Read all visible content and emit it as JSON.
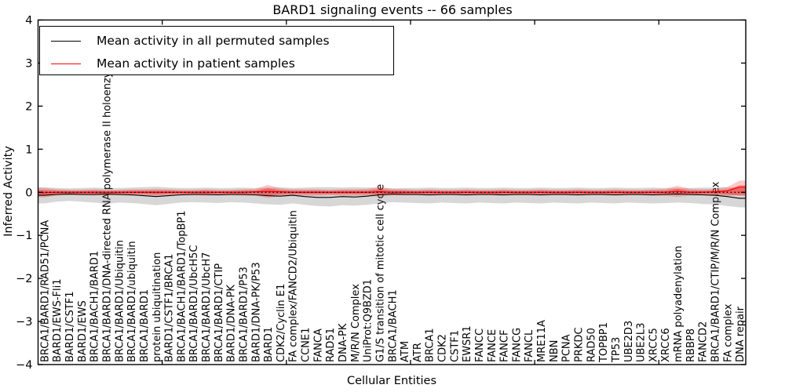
{
  "title": "BARD1 signaling events -- 66 samples",
  "legend": {
    "items": [
      {
        "label": "Mean activity in all permuted samples",
        "color": "#000000"
      },
      {
        "label": "Mean activity in patient samples",
        "color": "#ff0000"
      }
    ]
  },
  "chart_data": {
    "type": "line",
    "title": "BARD1 signaling events -- 66 samples",
    "xlabel": "Cellular Entities",
    "ylabel": "Inferred Activity",
    "ylim": [
      -4,
      4
    ],
    "yticks": [
      4,
      3,
      2,
      1,
      0,
      -1,
      -2,
      -3,
      -4
    ],
    "xlim": [
      0,
      57
    ],
    "xticks": [
      10,
      20,
      30,
      40,
      50
    ],
    "grid": false,
    "legend_position": "upper left",
    "zero_line": {
      "y": 0,
      "style": "dotted",
      "color": "#000000"
    },
    "colors": {
      "permuted_line": "#000000",
      "patient_line": "#ff0000",
      "permuted_band": "rgba(110,110,110,0.28)",
      "patient_band_outer": "rgba(255,0,0,0.22)",
      "patient_band_inner": "rgba(255,0,0,0.38)"
    },
    "categories": [
      "BRCA1/BARD1/RAD51/PCNA",
      "BARD1/EWS-Fli1",
      "BARD1/CSTF1",
      "BARD1/EWS",
      "BRCA1/BACH1/BARD1",
      "BRCA1/BARD1/DNA-directed RNA polymerase II holoenzyme",
      "BRCA1/BARD1/Ubiquitin",
      "BRCA1/BARD1/ubiquitin",
      "BRCA1/BARD1",
      "protein ubiquitination",
      "BARD1/CSTF1/BRCA1",
      "BRCA1/BACH1/BARD1/TopBP1",
      "BRCA1/BARD1/UbcH5C",
      "BRCA1/BARD1/UbcH7",
      "BRCA1/BARD1/CTIP",
      "BARD1/DNA-PK",
      "BRCA1/BARD1/P53",
      "BARD1/DNA-PK/P53",
      "BARD1",
      "CDK2/Cyclin E1",
      "FA complex/FANCD2/Ubiquitin",
      "CCNE1",
      "FANCA",
      "RAD51",
      "DNA-PK",
      "M/R/N Complex",
      "UniProt:Q9BZD1",
      "G1/S transition of mitotic cell cycle",
      "BRCA1/BACH1",
      "ATM",
      "ATR",
      "BRCA1",
      "CDK2",
      "CSTF1",
      "EWSR1",
      "FANCC",
      "FANCE",
      "FANCF",
      "FANCG",
      "FANCL",
      "MRE11A",
      "NBN",
      "PCNA",
      "PRKDC",
      "RAD50",
      "TOPBP1",
      "TP53",
      "UBE2D3",
      "UBE2L3",
      "XRCC5",
      "XRCC6",
      "mRNA polyadenylation",
      "RBBP8",
      "FANCD2",
      "BRCA1/BARD1/CTIP/M/R/N Complex",
      "FA complex",
      "DNA repair"
    ],
    "series": [
      {
        "name": "Mean activity in all permuted samples",
        "color": "#000000",
        "values": [
          -0.07,
          -0.05,
          -0.04,
          -0.05,
          -0.05,
          -0.04,
          -0.05,
          -0.06,
          -0.08,
          -0.1,
          -0.08,
          -0.06,
          -0.05,
          -0.05,
          -0.06,
          -0.05,
          -0.05,
          -0.06,
          -0.08,
          -0.09,
          -0.07,
          -0.1,
          -0.12,
          -0.12,
          -0.1,
          -0.11,
          -0.09,
          -0.06,
          -0.04,
          -0.05,
          -0.05,
          -0.06,
          -0.05,
          -0.05,
          -0.06,
          -0.05,
          -0.05,
          -0.06,
          -0.05,
          -0.05,
          -0.06,
          -0.05,
          -0.05,
          -0.06,
          -0.05,
          -0.05,
          -0.06,
          -0.05,
          -0.05,
          -0.06,
          -0.05,
          -0.04,
          -0.05,
          -0.06,
          -0.07,
          -0.1,
          -0.14
        ]
      },
      {
        "name": "Mean activity in patient samples",
        "color": "#ff0000",
        "values": [
          -0.01,
          0.0,
          0.0,
          0.0,
          0.0,
          0.0,
          0.0,
          0.0,
          0.0,
          0.0,
          0.0,
          0.0,
          0.0,
          0.0,
          0.0,
          0.0,
          0.0,
          0.01,
          0.02,
          0.01,
          0.0,
          0.0,
          0.0,
          0.0,
          0.0,
          0.0,
          0.0,
          0.01,
          0.0,
          0.0,
          0.0,
          0.0,
          0.0,
          0.0,
          0.0,
          0.0,
          0.0,
          0.0,
          0.0,
          0.0,
          0.0,
          0.0,
          0.0,
          0.0,
          0.0,
          0.0,
          0.0,
          0.0,
          0.0,
          0.0,
          0.0,
          0.02,
          0.0,
          0.0,
          0.01,
          0.03,
          0.12
        ]
      }
    ],
    "bands": [
      {
        "name": "permuted-std-band",
        "color": "rgba(110,110,110,0.28)",
        "upper": [
          0.12,
          0.1,
          0.09,
          0.1,
          0.11,
          0.1,
          0.1,
          0.11,
          0.12,
          0.13,
          0.11,
          0.1,
          0.1,
          0.11,
          0.1,
          0.1,
          0.11,
          0.1,
          0.11,
          0.12,
          0.1,
          0.11,
          0.12,
          0.12,
          0.11,
          0.12,
          0.11,
          0.1,
          0.09,
          0.1,
          0.1,
          0.11,
          0.1,
          0.1,
          0.11,
          0.1,
          0.1,
          0.11,
          0.1,
          0.1,
          0.11,
          0.1,
          0.1,
          0.11,
          0.1,
          0.1,
          0.11,
          0.1,
          0.1,
          0.11,
          0.1,
          0.1,
          0.1,
          0.11,
          0.11,
          0.12,
          0.1
        ],
        "lower": [
          -0.26,
          -0.22,
          -0.2,
          -0.22,
          -0.24,
          -0.27,
          -0.24,
          -0.25,
          -0.27,
          -0.3,
          -0.27,
          -0.24,
          -0.23,
          -0.24,
          -0.25,
          -0.23,
          -0.24,
          -0.26,
          -0.28,
          -0.29,
          -0.26,
          -0.29,
          -0.32,
          -0.33,
          -0.3,
          -0.31,
          -0.29,
          -0.26,
          -0.23,
          -0.24,
          -0.25,
          -0.26,
          -0.24,
          -0.25,
          -0.26,
          -0.24,
          -0.25,
          -0.26,
          -0.24,
          -0.25,
          -0.26,
          -0.24,
          -0.25,
          -0.26,
          -0.24,
          -0.25,
          -0.26,
          -0.24,
          -0.25,
          -0.26,
          -0.25,
          -0.24,
          -0.25,
          -0.27,
          -0.28,
          -0.32,
          -0.35
        ]
      },
      {
        "name": "patient-band-outer",
        "color": "rgba(255,0,0,0.22)",
        "upper": [
          0.1,
          0.07,
          0.06,
          0.06,
          0.07,
          0.06,
          0.06,
          0.07,
          0.07,
          0.08,
          0.07,
          0.06,
          0.06,
          0.07,
          0.06,
          0.06,
          0.07,
          0.08,
          0.17,
          0.09,
          0.07,
          0.07,
          0.07,
          0.06,
          0.07,
          0.07,
          0.08,
          0.13,
          0.08,
          0.07,
          0.06,
          0.07,
          0.06,
          0.06,
          0.07,
          0.06,
          0.06,
          0.07,
          0.06,
          0.06,
          0.07,
          0.06,
          0.06,
          0.07,
          0.06,
          0.06,
          0.07,
          0.06,
          0.06,
          0.07,
          0.08,
          0.15,
          0.08,
          0.07,
          0.08,
          0.12,
          0.27
        ],
        "lower": [
          -0.12,
          -0.08,
          -0.07,
          -0.07,
          -0.08,
          -0.07,
          -0.07,
          -0.08,
          -0.08,
          -0.09,
          -0.08,
          -0.07,
          -0.07,
          -0.08,
          -0.07,
          -0.07,
          -0.08,
          -0.08,
          -0.13,
          -0.09,
          -0.07,
          -0.08,
          -0.08,
          -0.07,
          -0.08,
          -0.08,
          -0.08,
          -0.1,
          -0.08,
          -0.07,
          -0.07,
          -0.08,
          -0.07,
          -0.07,
          -0.08,
          -0.07,
          -0.07,
          -0.08,
          -0.07,
          -0.07,
          -0.08,
          -0.07,
          -0.07,
          -0.08,
          -0.07,
          -0.07,
          -0.08,
          -0.07,
          -0.07,
          -0.08,
          -0.08,
          -0.11,
          -0.08,
          -0.07,
          -0.08,
          -0.09,
          -0.05
        ]
      },
      {
        "name": "patient-band-inner",
        "color": "rgba(255,0,0,0.38)",
        "upper": [
          0.05,
          0.04,
          0.03,
          0.03,
          0.04,
          0.03,
          0.03,
          0.04,
          0.04,
          0.04,
          0.04,
          0.03,
          0.03,
          0.04,
          0.03,
          0.03,
          0.04,
          0.04,
          0.09,
          0.05,
          0.04,
          0.04,
          0.04,
          0.03,
          0.04,
          0.04,
          0.04,
          0.07,
          0.04,
          0.04,
          0.03,
          0.04,
          0.03,
          0.03,
          0.04,
          0.03,
          0.03,
          0.04,
          0.03,
          0.03,
          0.04,
          0.03,
          0.03,
          0.04,
          0.03,
          0.03,
          0.04,
          0.03,
          0.03,
          0.04,
          0.04,
          0.08,
          0.04,
          0.04,
          0.04,
          0.06,
          0.16
        ],
        "lower": [
          -0.07,
          -0.04,
          -0.04,
          -0.04,
          -0.04,
          -0.04,
          -0.04,
          -0.04,
          -0.04,
          -0.05,
          -0.04,
          -0.04,
          -0.04,
          -0.04,
          -0.04,
          -0.04,
          -0.04,
          -0.04,
          -0.07,
          -0.05,
          -0.04,
          -0.04,
          -0.04,
          -0.04,
          -0.04,
          -0.04,
          -0.04,
          -0.05,
          -0.04,
          -0.04,
          -0.04,
          -0.04,
          -0.04,
          -0.04,
          -0.04,
          -0.04,
          -0.04,
          -0.04,
          -0.04,
          -0.04,
          -0.04,
          -0.04,
          -0.04,
          -0.04,
          -0.04,
          -0.04,
          -0.04,
          -0.04,
          -0.04,
          -0.04,
          -0.04,
          -0.06,
          -0.04,
          -0.04,
          -0.04,
          -0.05,
          -0.08
        ]
      }
    ]
  }
}
